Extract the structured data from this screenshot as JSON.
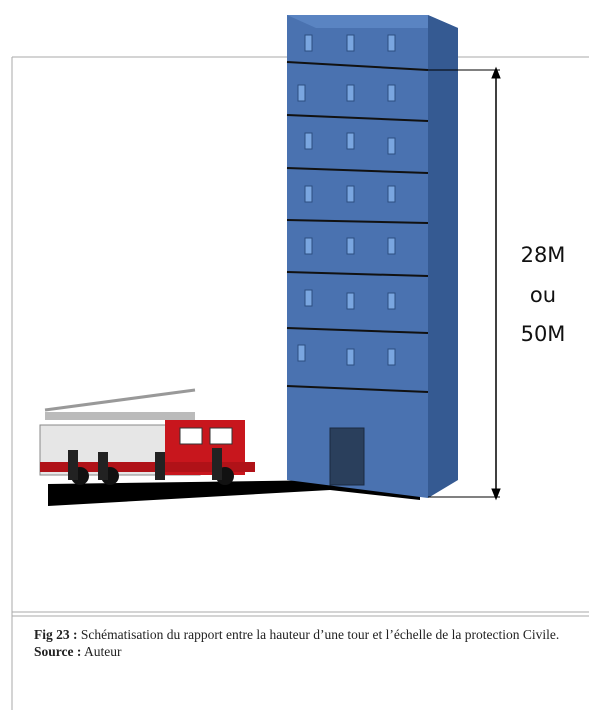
{
  "figure": {
    "dimension_label": [
      "28M",
      "ou",
      "50M"
    ]
  },
  "caption": {
    "label": "Fig 23 :",
    "text": "Schématisation du rapport entre la hauteur d’une tour et l’échelle de la protection Civile.",
    "source_label": "Source :",
    "source": "Auteur"
  }
}
